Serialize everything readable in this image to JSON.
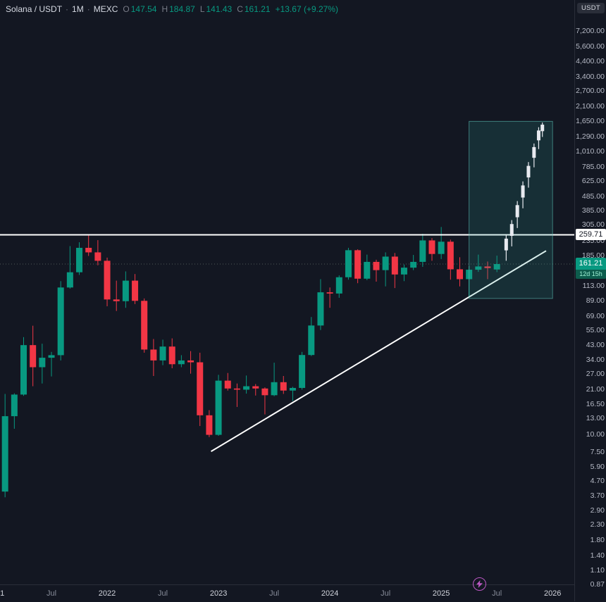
{
  "window": {
    "bg": "#131722"
  },
  "legend": {
    "symbol": "Solana / USDT",
    "sep": "·",
    "interval": "1M",
    "exchange": "MEXC",
    "o_label": "O",
    "o": "147.54",
    "h_label": "H",
    "h": "184.87",
    "l_label": "L",
    "l": "141.43",
    "c_label": "C",
    "c": "161.21",
    "change": "+13.67 (+9.27%)"
  },
  "axis": {
    "currency_badge": "USDT",
    "price_tag_resistance": "259.71",
    "price_tag_current": "161.21",
    "countdown": "12d 15h",
    "y_labels": [
      "7,200.00",
      "5,600.00",
      "4,400.00",
      "3,400.00",
      "2,700.00",
      "2,100.00",
      "1,650.00",
      "1,290.00",
      "1,010.00",
      "785.00",
      "625.00",
      "485.00",
      "385.00",
      "305.00",
      "235.00",
      "185.00",
      "145.00",
      "113.00",
      "89.00",
      "69.00",
      "55.00",
      "43.00",
      "34.00",
      "27.00",
      "21.00",
      "16.50",
      "13.00",
      "10.00",
      "7.50",
      "5.90",
      "4.70",
      "3.70",
      "2.90",
      "2.30",
      "1.80",
      "1.40",
      "1.10",
      "0.87"
    ],
    "x_labels": [
      {
        "label": "2021",
        "month": 0,
        "type": "year"
      },
      {
        "label": "Jul",
        "month": 6,
        "type": "month"
      },
      {
        "label": "2022",
        "month": 12,
        "type": "year"
      },
      {
        "label": "Jul",
        "month": 18,
        "type": "month"
      },
      {
        "label": "2023",
        "month": 24,
        "type": "year"
      },
      {
        "label": "Jul",
        "month": 30,
        "type": "month"
      },
      {
        "label": "2024",
        "month": 36,
        "type": "year"
      },
      {
        "label": "Jul",
        "month": 42,
        "type": "month"
      },
      {
        "label": "2025",
        "month": 48,
        "type": "year"
      },
      {
        "label": "Jul",
        "month": 54,
        "type": "month"
      },
      {
        "label": "2026",
        "month": 60,
        "type": "year"
      }
    ]
  },
  "chart_data": {
    "type": "candlestick",
    "symbol": "SOLUSDT",
    "exchange": "MEXC",
    "timeframe": "1M",
    "y_scale": "log",
    "y_range_visible": [
      0.87,
      7200
    ],
    "grid": "off",
    "current_price": 161.21,
    "candles": [
      [
        "2021-01",
        1.51,
        4.7,
        1.3,
        3.95
      ],
      [
        "2021-02",
        3.95,
        19.4,
        3.6,
        13.5
      ],
      [
        "2021-03",
        13.5,
        19.6,
        11.0,
        19.2
      ],
      [
        "2021-04",
        19.2,
        49.0,
        18.8,
        43.0
      ],
      [
        "2021-05",
        43.0,
        59.0,
        22.0,
        30.0
      ],
      [
        "2021-06",
        30.0,
        44.0,
        23.0,
        35.0
      ],
      [
        "2021-07",
        35.0,
        38.5,
        25.8,
        36.5
      ],
      [
        "2021-08",
        36.5,
        122.0,
        33.5,
        110.0
      ],
      [
        "2021-09",
        110.0,
        216.0,
        108.0,
        141.0
      ],
      [
        "2021-10",
        141.0,
        230.0,
        135.0,
        210.0
      ],
      [
        "2021-11",
        210.0,
        260.0,
        184.0,
        195.0
      ],
      [
        "2021-12",
        195.0,
        238.0,
        158.0,
        170.0
      ],
      [
        "2022-01",
        170.0,
        179.0,
        81.0,
        90.5
      ],
      [
        "2022-02",
        90.5,
        123.0,
        75.0,
        88.0
      ],
      [
        "2022-03",
        88.0,
        143.0,
        79.0,
        123.0
      ],
      [
        "2022-04",
        123.0,
        137.0,
        84.0,
        88.5
      ],
      [
        "2022-05",
        88.5,
        92.0,
        38.0,
        40.0
      ],
      [
        "2022-06",
        40.0,
        47.5,
        26.0,
        33.5
      ],
      [
        "2022-07",
        33.5,
        47.0,
        31.0,
        42.0
      ],
      [
        "2022-08",
        42.0,
        48.0,
        29.5,
        31.5
      ],
      [
        "2022-09",
        31.5,
        36.5,
        30.0,
        33.5
      ],
      [
        "2022-10",
        33.5,
        39.0,
        27.0,
        32.5
      ],
      [
        "2022-11",
        32.5,
        38.0,
        11.5,
        13.7
      ],
      [
        "2022-12",
        13.7,
        14.9,
        9.6,
        9.96
      ],
      [
        "2023-01",
        9.96,
        26.5,
        9.8,
        24.1
      ],
      [
        "2023-02",
        24.1,
        27.3,
        20.5,
        21.2
      ],
      [
        "2023-03",
        21.2,
        23.0,
        15.7,
        20.8
      ],
      [
        "2023-04",
        20.8,
        26.2,
        19.5,
        22.0
      ],
      [
        "2023-05",
        22.0,
        22.8,
        18.9,
        21.2
      ],
      [
        "2023-06",
        21.2,
        21.6,
        13.9,
        19.0
      ],
      [
        "2023-07",
        19.0,
        32.3,
        18.7,
        23.5
      ],
      [
        "2023-08",
        23.5,
        26.0,
        19.4,
        20.5
      ],
      [
        "2023-09",
        20.5,
        21.8,
        17.3,
        21.4
      ],
      [
        "2023-10",
        21.4,
        38.5,
        20.8,
        36.6
      ],
      [
        "2023-11",
        36.6,
        68.0,
        36.0,
        59.2
      ],
      [
        "2023-12",
        59.2,
        126.0,
        55.0,
        101.7
      ],
      [
        "2024-01",
        101.7,
        110.0,
        79.0,
        99.7
      ],
      [
        "2024-02",
        99.7,
        134.0,
        93.0,
        130.0
      ],
      [
        "2024-03",
        130.0,
        210.0,
        125.0,
        202.0
      ],
      [
        "2024-04",
        202.0,
        205.0,
        118.0,
        127.0
      ],
      [
        "2024-05",
        127.0,
        188.0,
        124.0,
        167.0
      ],
      [
        "2024-06",
        167.0,
        173.0,
        121.0,
        146.0
      ],
      [
        "2024-07",
        146.0,
        195.0,
        112.0,
        182.0
      ],
      [
        "2024-08",
        182.0,
        193.0,
        109.0,
        136.0
      ],
      [
        "2024-09",
        136.0,
        160.0,
        122.0,
        152.0
      ],
      [
        "2024-10",
        152.0,
        187.0,
        146.0,
        167.0
      ],
      [
        "2024-11",
        167.0,
        264.0,
        154.0,
        237.0
      ],
      [
        "2024-12",
        237.0,
        246.0,
        170.0,
        190.0
      ],
      [
        "2025-01",
        190.0,
        295.0,
        175.0,
        232.0
      ],
      [
        "2025-02",
        232.0,
        240.0,
        125.0,
        148.0
      ],
      [
        "2025-03",
        148.0,
        180.0,
        112.0,
        126.0
      ],
      [
        "2025-04",
        126.0,
        156.0,
        95.0,
        147.0
      ],
      [
        "2025-05",
        147.0,
        188.0,
        142.0,
        155.0
      ],
      [
        "2025-06",
        155.0,
        168.0,
        126.0,
        151.0
      ],
      [
        "2025-07",
        147.54,
        184.87,
        141.43,
        161.21
      ]
    ],
    "resistance_line": {
      "price": 259.71
    },
    "trendline": {
      "from": {
        "month": 23.2,
        "price": 7.6
      },
      "to": {
        "month": 59.3,
        "price": 200
      }
    },
    "projection_box": {
      "month_from": 51,
      "month_to": 60,
      "price_low": 92,
      "price_high": 1650
    },
    "projection_bars": [
      [
        55.0,
        170,
        260
      ],
      [
        55.6,
        215,
        330
      ],
      [
        56.2,
        290,
        450
      ],
      [
        56.8,
        400,
        620
      ],
      [
        57.4,
        560,
        850
      ],
      [
        58.0,
        780,
        1150
      ],
      [
        58.5,
        1050,
        1500
      ],
      [
        58.9,
        1280,
        1620
      ]
    ]
  },
  "colors": {
    "bg": "#131722",
    "up": "#089981",
    "down": "#f23645",
    "resistance": "#ffffff",
    "trendline": "#ffffff",
    "projection": "#e8eaf0",
    "current_line": "#4f5a58",
    "box_fill": "rgba(42,158,150,0.18)",
    "box_border": "rgba(96,200,190,0.55)",
    "axis_year": "#d1d4dc",
    "axis_month": "#868b98",
    "watermark": "#cf5fd6"
  }
}
